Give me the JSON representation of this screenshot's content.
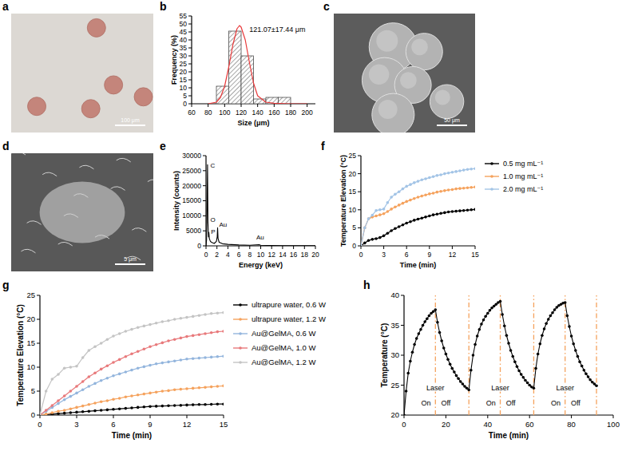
{
  "panel_labels": [
    "a",
    "b",
    "c",
    "d",
    "e",
    "f",
    "g",
    "h"
  ],
  "images": [
    {
      "scale_bar": "100 μm"
    },
    {
      "scale_bar": "50 μm"
    },
    {
      "scale_bar": "5 μm"
    }
  ],
  "chart_data": [
    {
      "type": "histogram",
      "xlabel": "Size (μm)",
      "ylabel": "Frequency (%)",
      "bins": [
        90,
        105,
        120,
        135,
        150,
        165,
        180
      ],
      "values": [
        11,
        45.5,
        30,
        3,
        4,
        4
      ],
      "color": "#4d4d4d",
      "xlim": [
        60,
        210
      ],
      "ylim": [
        0,
        55
      ],
      "xticks": [
        60,
        80,
        100,
        120,
        140,
        160,
        180,
        200
      ],
      "yticks": [
        0,
        5,
        10,
        15,
        20,
        25,
        30,
        35,
        40,
        45,
        50,
        55
      ],
      "fit": {
        "x": [
          80,
          90,
          95,
          100,
          105,
          110,
          115,
          118,
          120,
          125,
          130,
          135,
          140,
          150,
          160,
          180,
          200
        ],
        "values": [
          0,
          1,
          4,
          11,
          23,
          37,
          47,
          49,
          48,
          40,
          26,
          13,
          5,
          1,
          0.3,
          0,
          0
        ],
        "color": "#e8393a"
      },
      "annotations": [
        {
          "text": "121.07±17.44 μm",
          "x": 130,
          "y": 45
        }
      ]
    },
    {
      "type": "line",
      "xlabel": "Energy (keV)",
      "ylabel": "Intensity (counts)",
      "x": [
        0,
        0.1,
        0.2,
        0.28,
        0.35,
        0.45,
        0.52,
        0.6,
        0.8,
        1.0,
        1.5,
        1.9,
        2.0,
        2.05,
        2.12,
        2.2,
        2.4,
        3,
        4,
        6,
        8,
        9.7,
        10,
        12,
        14,
        16,
        18,
        20
      ],
      "values": [
        0,
        2000,
        15000,
        27000,
        8000,
        3000,
        4500,
        2500,
        1500,
        1200,
        800,
        1500,
        2500,
        3000,
        6000,
        2500,
        1200,
        700,
        500,
        300,
        200,
        400,
        200,
        100,
        80,
        60,
        50,
        40
      ],
      "color": "#000000",
      "xlim": [
        0,
        20
      ],
      "ylim": [
        0,
        30000
      ],
      "xticks": [
        0,
        2,
        4,
        6,
        8,
        10,
        12,
        14,
        16,
        18,
        20
      ],
      "yticks": [
        0,
        5000,
        10000,
        15000,
        20000,
        25000,
        30000
      ],
      "annotations": [
        {
          "text": "C",
          "x": 0.8,
          "y": 26000
        },
        {
          "text": "O",
          "x": 0.8,
          "y": 8000
        },
        {
          "text": "P",
          "x": 0.9,
          "y": 4000
        },
        {
          "text": "Au",
          "x": 2.4,
          "y": 6500
        },
        {
          "text": "Au",
          "x": 9.2,
          "y": 2200
        }
      ]
    },
    {
      "type": "line",
      "xlabel": "Time (min)",
      "ylabel": "Temperature Elevation (°C)",
      "x": [
        0,
        0.5,
        1,
        1.5,
        2,
        2.5,
        3,
        3.5,
        4,
        4.5,
        5,
        5.5,
        6,
        6.5,
        7,
        7.5,
        8,
        8.5,
        9,
        9.5,
        10,
        10.5,
        11,
        11.5,
        12,
        12.5,
        13,
        13.5,
        14,
        14.5,
        15
      ],
      "series": [
        {
          "name": "0.5 mg mL⁻¹",
          "color": "#000000",
          "values": [
            0,
            0.8,
            1.5,
            1.8,
            2.0,
            2.3,
            2.8,
            3.5,
            4.2,
            4.8,
            5.3,
            5.8,
            6.3,
            6.7,
            7.1,
            7.4,
            7.7,
            8.0,
            8.3,
            8.6,
            8.8,
            9.0,
            9.2,
            9.4,
            9.5,
            9.6,
            9.7,
            9.8,
            9.9,
            10.0,
            10.1
          ]
        },
        {
          "name": "1.0 mg mL⁻¹",
          "color": "#f5a25d",
          "values": [
            0,
            5.0,
            7.5,
            8.0,
            8.3,
            8.6,
            8.9,
            9.5,
            10.2,
            10.8,
            11.3,
            11.8,
            12.3,
            12.7,
            13.1,
            13.5,
            13.8,
            14.1,
            14.4,
            14.6,
            14.9,
            15.1,
            15.3,
            15.5,
            15.6,
            15.8,
            15.9,
            16.0,
            16.1,
            16.2,
            16.3
          ]
        },
        {
          "name": "2.0 mg mL⁻¹",
          "color": "#a3c4e6",
          "values": [
            0,
            5.0,
            7.5,
            8.5,
            9.8,
            10.0,
            10.2,
            12.0,
            13.5,
            14.3,
            15.0,
            15.8,
            16.5,
            17.0,
            17.5,
            17.9,
            18.3,
            18.6,
            18.9,
            19.2,
            19.5,
            19.7,
            20.0,
            20.2,
            20.4,
            20.6,
            20.8,
            21.0,
            21.2,
            21.3,
            21.4
          ]
        }
      ],
      "marker": "circle",
      "legend": "right",
      "xlim": [
        0,
        15
      ],
      "ylim": [
        0,
        25
      ],
      "xticks": [
        0,
        3,
        6,
        9,
        12,
        15
      ],
      "yticks": [
        0,
        5,
        10,
        15,
        20,
        25
      ]
    },
    {
      "type": "line",
      "xlabel": "Time (min)",
      "ylabel": "Temperature Elevation (°C)",
      "x": [
        0,
        0.5,
        1,
        1.5,
        2,
        2.5,
        3,
        3.5,
        4,
        4.5,
        5,
        5.5,
        6,
        6.5,
        7,
        7.5,
        8,
        8.5,
        9,
        9.5,
        10,
        10.5,
        11,
        11.5,
        12,
        12.5,
        13,
        13.5,
        14,
        14.5,
        15
      ],
      "series": [
        {
          "name": "ultrapure water, 0.6 W",
          "color": "#000000",
          "values": [
            0,
            0.1,
            0.2,
            0.3,
            0.4,
            0.5,
            0.6,
            0.7,
            0.8,
            0.9,
            1.0,
            1.1,
            1.2,
            1.3,
            1.4,
            1.5,
            1.6,
            1.7,
            1.8,
            1.85,
            1.9,
            1.95,
            2.0,
            2.05,
            2.1,
            2.15,
            2.2,
            2.2,
            2.25,
            2.3,
            2.3
          ]
        },
        {
          "name": "ultrapure water, 1.2 W",
          "color": "#f5a25d",
          "values": [
            0,
            0.2,
            0.5,
            0.8,
            1.0,
            1.3,
            1.6,
            1.9,
            2.2,
            2.5,
            2.8,
            3.0,
            3.3,
            3.5,
            3.8,
            4.0,
            4.2,
            4.4,
            4.6,
            4.8,
            5.0,
            5.1,
            5.3,
            5.4,
            5.5,
            5.6,
            5.7,
            5.8,
            5.9,
            6.0,
            6.1
          ]
        },
        {
          "name": "Au@GelMA, 0.6 W",
          "color": "#93b5dd",
          "values": [
            0,
            0.8,
            1.6,
            2.4,
            3.2,
            3.9,
            4.6,
            5.3,
            6.0,
            6.6,
            7.2,
            7.7,
            8.2,
            8.6,
            9.0,
            9.4,
            9.8,
            10.1,
            10.4,
            10.7,
            10.9,
            11.1,
            11.3,
            11.5,
            11.7,
            11.8,
            11.9,
            12.0,
            12.1,
            12.2,
            12.3
          ]
        },
        {
          "name": "Au@GelMA, 1.0 W",
          "color": "#e8797b",
          "values": [
            0,
            1.0,
            2.0,
            3.0,
            4.0,
            5.0,
            6.0,
            7.0,
            8.0,
            8.8,
            9.6,
            10.3,
            11.0,
            11.6,
            12.2,
            12.8,
            13.3,
            13.8,
            14.3,
            14.7,
            15.1,
            15.5,
            15.8,
            16.1,
            16.4,
            16.6,
            16.8,
            17.0,
            17.2,
            17.4,
            17.5
          ]
        },
        {
          "name": "Au@GelMA, 1.2 W",
          "color": "#c4c4c4",
          "values": [
            0,
            5.0,
            7.5,
            8.5,
            9.8,
            10.0,
            10.2,
            12.0,
            13.5,
            14.3,
            15.0,
            15.8,
            16.5,
            17.0,
            17.5,
            17.9,
            18.3,
            18.6,
            18.9,
            19.2,
            19.5,
            19.7,
            20.0,
            20.2,
            20.4,
            20.6,
            20.8,
            21.0,
            21.2,
            21.3,
            21.4
          ]
        }
      ],
      "marker": "circle",
      "legend": "right",
      "xlim": [
        0,
        15
      ],
      "ylim": [
        0,
        25
      ],
      "xticks": [
        0,
        3,
        6,
        9,
        12,
        15
      ],
      "yticks": [
        0,
        5,
        10,
        15,
        20,
        25
      ]
    },
    {
      "type": "line",
      "xlabel": "Time (min)",
      "ylabel": "Temperature (°C)",
      "x": [
        0,
        1,
        2,
        3,
        4,
        5,
        6,
        7,
        8,
        9,
        10,
        11,
        12,
        13,
        14,
        15,
        16,
        17,
        18,
        19,
        20,
        21,
        22,
        23,
        24,
        25,
        26,
        27,
        28,
        29,
        30,
        31,
        32,
        33,
        34,
        35,
        36,
        37,
        38,
        39,
        40,
        41,
        42,
        43,
        44,
        45,
        46,
        47,
        48,
        49,
        50,
        51,
        52,
        53,
        54,
        55,
        56,
        57,
        58,
        59,
        60,
        61,
        62,
        63,
        64,
        65,
        66,
        67,
        68,
        69,
        70,
        71,
        72,
        73,
        74,
        75,
        76,
        77,
        78,
        79,
        80,
        81,
        82,
        83,
        84,
        85,
        86,
        87,
        88,
        89,
        90,
        91,
        92
      ],
      "values": [
        20,
        24,
        27,
        29,
        30.5,
        31.8,
        32.8,
        33.6,
        34.3,
        35,
        35.6,
        36.1,
        36.6,
        37,
        37.3,
        37.6,
        35.5,
        33.8,
        32.4,
        31.2,
        30.2,
        29.3,
        28.5,
        27.8,
        27.2,
        26.6,
        26.1,
        25.6,
        25.2,
        24.8,
        24.5,
        24.2,
        27.5,
        30,
        31.8,
        33.2,
        34.3,
        35.2,
        35.9,
        36.5,
        37,
        37.5,
        37.9,
        38.2,
        38.5,
        38.8,
        39.0,
        36.8,
        34.9,
        33.3,
        32,
        30.8,
        29.8,
        28.9,
        28.1,
        27.4,
        26.8,
        26.3,
        25.8,
        25.4,
        25,
        24.7,
        24.5,
        27.8,
        30.2,
        31.9,
        33.3,
        34.4,
        35.3,
        36,
        36.6,
        37.1,
        37.6,
        38,
        38.3,
        38.5,
        38.7,
        38.8,
        36.6,
        34.8,
        33.2,
        31.9,
        30.8,
        29.8,
        28.9,
        28.2,
        27.5,
        26.9,
        26.4,
        25.9,
        25.5,
        25.2,
        24.9
      ],
      "color": "#000000",
      "marker": "circle",
      "xlim": [
        0,
        100
      ],
      "ylim": [
        20,
        40
      ],
      "xticks": [
        0,
        20,
        40,
        60,
        80,
        100
      ],
      "yticks": [
        20,
        25,
        30,
        35,
        40
      ],
      "reference_lines": {
        "values": [
          15,
          31,
          46,
          62,
          77,
          92
        ],
        "color": "#f5a25d",
        "line_style": "dashdot"
      },
      "annotations": [
        {
          "text": "Laser",
          "x": 15,
          "y": 24.2
        },
        {
          "text": "On",
          "x": 10.5,
          "y": 21.6
        },
        {
          "text": "Off",
          "x": 20,
          "y": 21.6
        },
        {
          "text": "Laser",
          "x": 46,
          "y": 24.2
        },
        {
          "text": "On",
          "x": 41.5,
          "y": 21.6
        },
        {
          "text": "Off",
          "x": 51,
          "y": 21.6
        },
        {
          "text": "Laser",
          "x": 77,
          "y": 24.2
        },
        {
          "text": "On",
          "x": 72.5,
          "y": 21.6
        },
        {
          "text": "Off",
          "x": 82,
          "y": 21.6
        }
      ]
    }
  ]
}
